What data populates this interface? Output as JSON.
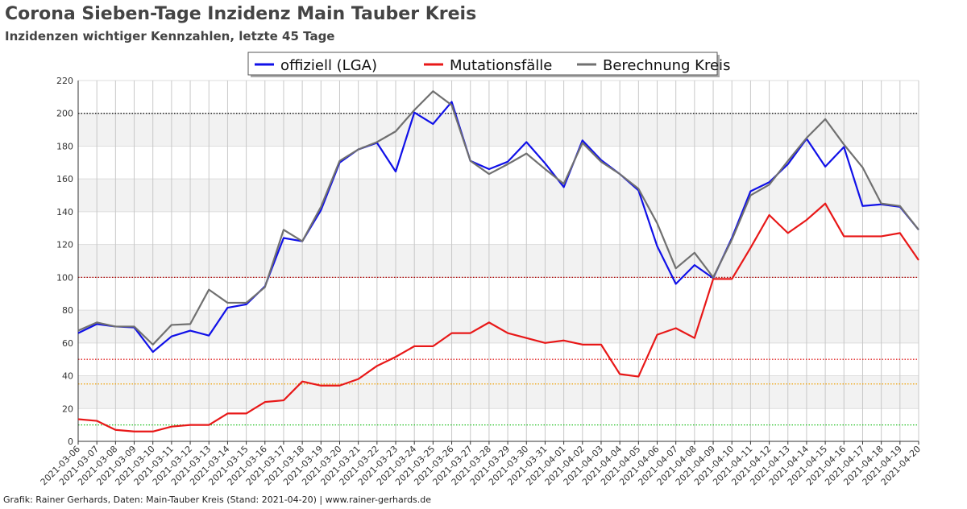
{
  "chart_data": {
    "type": "line",
    "title": "Corona Sieben-Tage Inzidenz Main Tauber Kreis",
    "subtitle": "Inzidenzen wichtiger Kennzahlen, letzte 45 Tage",
    "footer": "Grafik: Rainer Gerhards, Daten: Main-Tauber Kreis (Stand: 2021-04-20) | www.rainer-gerhards.de",
    "categories": [
      "2021-03-06",
      "2021-03-07",
      "2021-03-08",
      "2021-03-09",
      "2021-03-10",
      "2021-03-11",
      "2021-03-12",
      "2021-03-13",
      "2021-03-14",
      "2021-03-15",
      "2021-03-16",
      "2021-03-17",
      "2021-03-18",
      "2021-03-19",
      "2021-03-20",
      "2021-03-21",
      "2021-03-22",
      "2021-03-23",
      "2021-03-24",
      "2021-03-25",
      "2021-03-26",
      "2021-03-27",
      "2021-03-28",
      "2021-03-29",
      "2021-03-30",
      "2021-03-31",
      "2021-04-01",
      "2021-04-02",
      "2021-04-03",
      "2021-04-04",
      "2021-04-05",
      "2021-04-06",
      "2021-04-07",
      "2021-04-08",
      "2021-04-09",
      "2021-04-10",
      "2021-04-11",
      "2021-04-12",
      "2021-04-13",
      "2021-04-14",
      "2021-04-15",
      "2021-04-16",
      "2021-04-17",
      "2021-04-18",
      "2021-04-19",
      "2021-04-20"
    ],
    "series": [
      {
        "name": "offiziell (LGA)",
        "color": "#1010e8",
        "values": [
          66,
          71.5,
          70,
          69.5,
          54.5,
          64,
          67.5,
          64.5,
          81.5,
          83.5,
          94.5,
          124,
          122,
          141,
          170,
          178,
          182,
          164.5,
          200.5,
          193.5,
          207,
          171,
          166,
          170.5,
          182.5,
          169.5,
          155,
          183.5,
          171.5,
          163,
          153,
          119,
          96,
          107.5,
          99.5,
          124,
          152.5,
          158,
          169,
          184.5,
          167.5,
          179.5,
          143.5,
          144.5,
          143,
          129
        ]
      },
      {
        "name": "Mutationsfälle",
        "color": "#e81818",
        "values": [
          13.5,
          12.5,
          7,
          6,
          6,
          9,
          10,
          10,
          17,
          17,
          24,
          25,
          36.5,
          34,
          34,
          38,
          46,
          51.5,
          58,
          58,
          66,
          66,
          72.5,
          66,
          63,
          60,
          61.5,
          59,
          59,
          41,
          39.5,
          65,
          69,
          63,
          99,
          99,
          118,
          138,
          127,
          135,
          145,
          125,
          125,
          125,
          127,
          110.5
        ]
      },
      {
        "name": "Berechnung Kreis",
        "color": "#707070",
        "values": [
          67.5,
          72.5,
          70,
          70,
          59,
          71,
          71.5,
          92.5,
          84.5,
          84.5,
          94,
          129,
          122,
          143,
          171,
          178,
          182.5,
          189,
          202,
          213.5,
          205,
          171,
          163,
          169,
          175.5,
          166,
          157,
          182,
          170.5,
          163,
          154,
          133,
          105.5,
          115,
          100,
          123,
          150,
          156.5,
          171,
          185,
          196.5,
          181,
          167,
          145,
          143.5,
          129
        ]
      }
    ],
    "ylim": [
      0,
      220
    ],
    "yticks": [
      0,
      20,
      40,
      60,
      80,
      100,
      120,
      140,
      160,
      180,
      200,
      220
    ],
    "grid": true,
    "reference_lines": [
      {
        "value": 200,
        "color": "#000000"
      },
      {
        "value": 100,
        "color": "#b00000"
      },
      {
        "value": 50,
        "color": "#e02020"
      },
      {
        "value": 35,
        "color": "#f0a000"
      },
      {
        "value": 10,
        "color": "#20c020"
      }
    ]
  }
}
